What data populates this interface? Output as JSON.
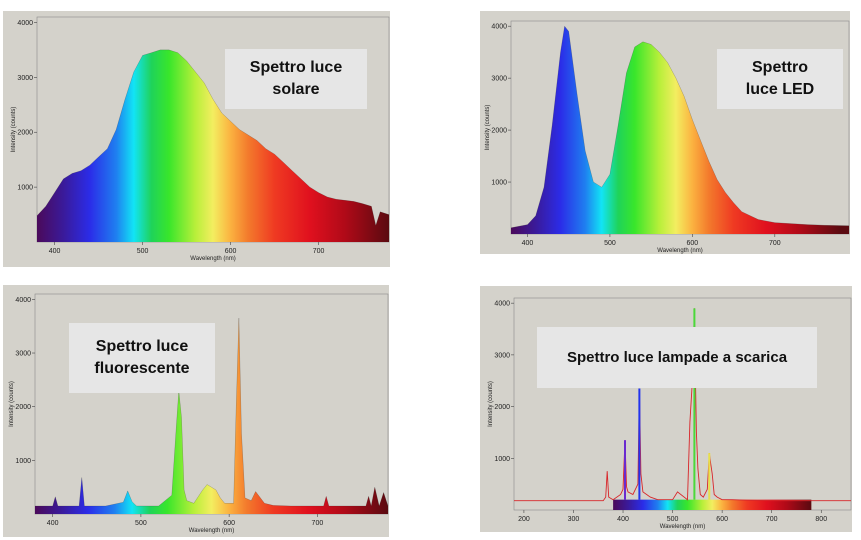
{
  "chart_data": [
    {
      "type": "area",
      "title": "Spettro luce solare",
      "xlabel": "Wavelength (nm)",
      "ylabel": "Intensity (counts)",
      "xlim": [
        380,
        780
      ],
      "ylim": [
        0,
        4100
      ],
      "xticks": [
        400,
        500,
        600,
        700
      ],
      "yticks": [
        1000,
        2000,
        3000,
        4000
      ],
      "x": [
        380,
        390,
        400,
        410,
        420,
        430,
        440,
        450,
        460,
        470,
        480,
        490,
        500,
        510,
        520,
        530,
        540,
        550,
        560,
        570,
        580,
        590,
        600,
        610,
        620,
        630,
        640,
        650,
        660,
        670,
        680,
        690,
        700,
        710,
        720,
        730,
        740,
        750,
        760,
        765,
        770,
        780
      ],
      "y": [
        480,
        650,
        900,
        1150,
        1250,
        1300,
        1400,
        1550,
        1700,
        2050,
        2600,
        3100,
        3400,
        3450,
        3500,
        3500,
        3450,
        3300,
        3100,
        2900,
        2600,
        2350,
        2200,
        2050,
        1950,
        1850,
        1700,
        1600,
        1450,
        1300,
        1150,
        1000,
        900,
        820,
        780,
        760,
        740,
        700,
        650,
        300,
        550,
        500
      ]
    },
    {
      "type": "area",
      "title": "Spettro luce LED",
      "xlabel": "Wavelength (nm)",
      "ylabel": "Intensity (counts)",
      "xlim": [
        380,
        790
      ],
      "ylim": [
        0,
        4100
      ],
      "xticks": [
        400,
        500,
        600,
        700
      ],
      "yticks": [
        1000,
        2000,
        3000,
        4000
      ],
      "x": [
        380,
        400,
        410,
        420,
        430,
        440,
        445,
        450,
        460,
        470,
        480,
        490,
        500,
        510,
        520,
        530,
        540,
        550,
        560,
        570,
        580,
        590,
        600,
        610,
        620,
        630,
        640,
        650,
        660,
        680,
        700,
        720,
        740,
        760,
        790
      ],
      "y": [
        120,
        180,
        350,
        900,
        2100,
        3500,
        4000,
        3900,
        2700,
        1600,
        1000,
        900,
        1150,
        2100,
        3100,
        3600,
        3700,
        3650,
        3500,
        3300,
        3000,
        2650,
        2200,
        1800,
        1400,
        1050,
        800,
        600,
        430,
        280,
        220,
        200,
        180,
        170,
        160
      ]
    },
    {
      "type": "line",
      "title": "Spettro luce fluorescente",
      "xlabel": "Wavelength (nm)",
      "ylabel": "Intensity (counts)",
      "xlim": [
        380,
        780
      ],
      "ylim": [
        0,
        4100
      ],
      "xticks": [
        400,
        500,
        600,
        700
      ],
      "yticks": [
        1000,
        2000,
        3000,
        4000
      ],
      "x": [
        380,
        400,
        403,
        406,
        420,
        430,
        433,
        436,
        440,
        460,
        480,
        485,
        490,
        495,
        500,
        520,
        535,
        540,
        543,
        546,
        549,
        552,
        560,
        570,
        575,
        580,
        585,
        590,
        595,
        605,
        608,
        611,
        614,
        618,
        625,
        630,
        640,
        650,
        670,
        690,
        707,
        710,
        713,
        740,
        755,
        758,
        761,
        765,
        770,
        775,
        780
      ],
      "y": [
        150,
        150,
        320,
        150,
        150,
        150,
        680,
        150,
        150,
        150,
        220,
        430,
        230,
        150,
        150,
        150,
        350,
        1600,
        2300,
        1800,
        450,
        250,
        200,
        450,
        550,
        500,
        450,
        300,
        200,
        200,
        2000,
        3650,
        1500,
        300,
        250,
        420,
        200,
        160,
        150,
        150,
        150,
        330,
        150,
        150,
        150,
        330,
        150,
        500,
        150,
        400,
        150
      ]
    },
    {
      "type": "line",
      "title": "Spettro luce lampade a scarica",
      "xlabel": "Wavelength (nm)",
      "ylabel": "Intensity (counts)",
      "xlim": [
        180,
        860
      ],
      "ylim": [
        0,
        4100
      ],
      "xticks": [
        200,
        300,
        400,
        500,
        600,
        700,
        800
      ],
      "yticks": [
        1000,
        2000,
        3000,
        4000
      ],
      "x": [
        180,
        360,
        365,
        368,
        371,
        380,
        395,
        400,
        404,
        407,
        410,
        420,
        430,
        433,
        436,
        440,
        455,
        470,
        480,
        490,
        500,
        510,
        530,
        535,
        540,
        544,
        546,
        548,
        551,
        556,
        562,
        570,
        574,
        577,
        580,
        584,
        590,
        600,
        620,
        650,
        700,
        760,
        800,
        860
      ],
      "y": [
        180,
        180,
        250,
        750,
        250,
        200,
        300,
        400,
        1350,
        450,
        350,
        300,
        500,
        2350,
        700,
        350,
        250,
        200,
        200,
        200,
        200,
        350,
        200,
        1700,
        2500,
        3900,
        2600,
        1500,
        800,
        300,
        250,
        400,
        1100,
        900,
        700,
        300,
        250,
        200,
        200,
        190,
        180,
        180,
        180,
        180
      ]
    }
  ]
}
